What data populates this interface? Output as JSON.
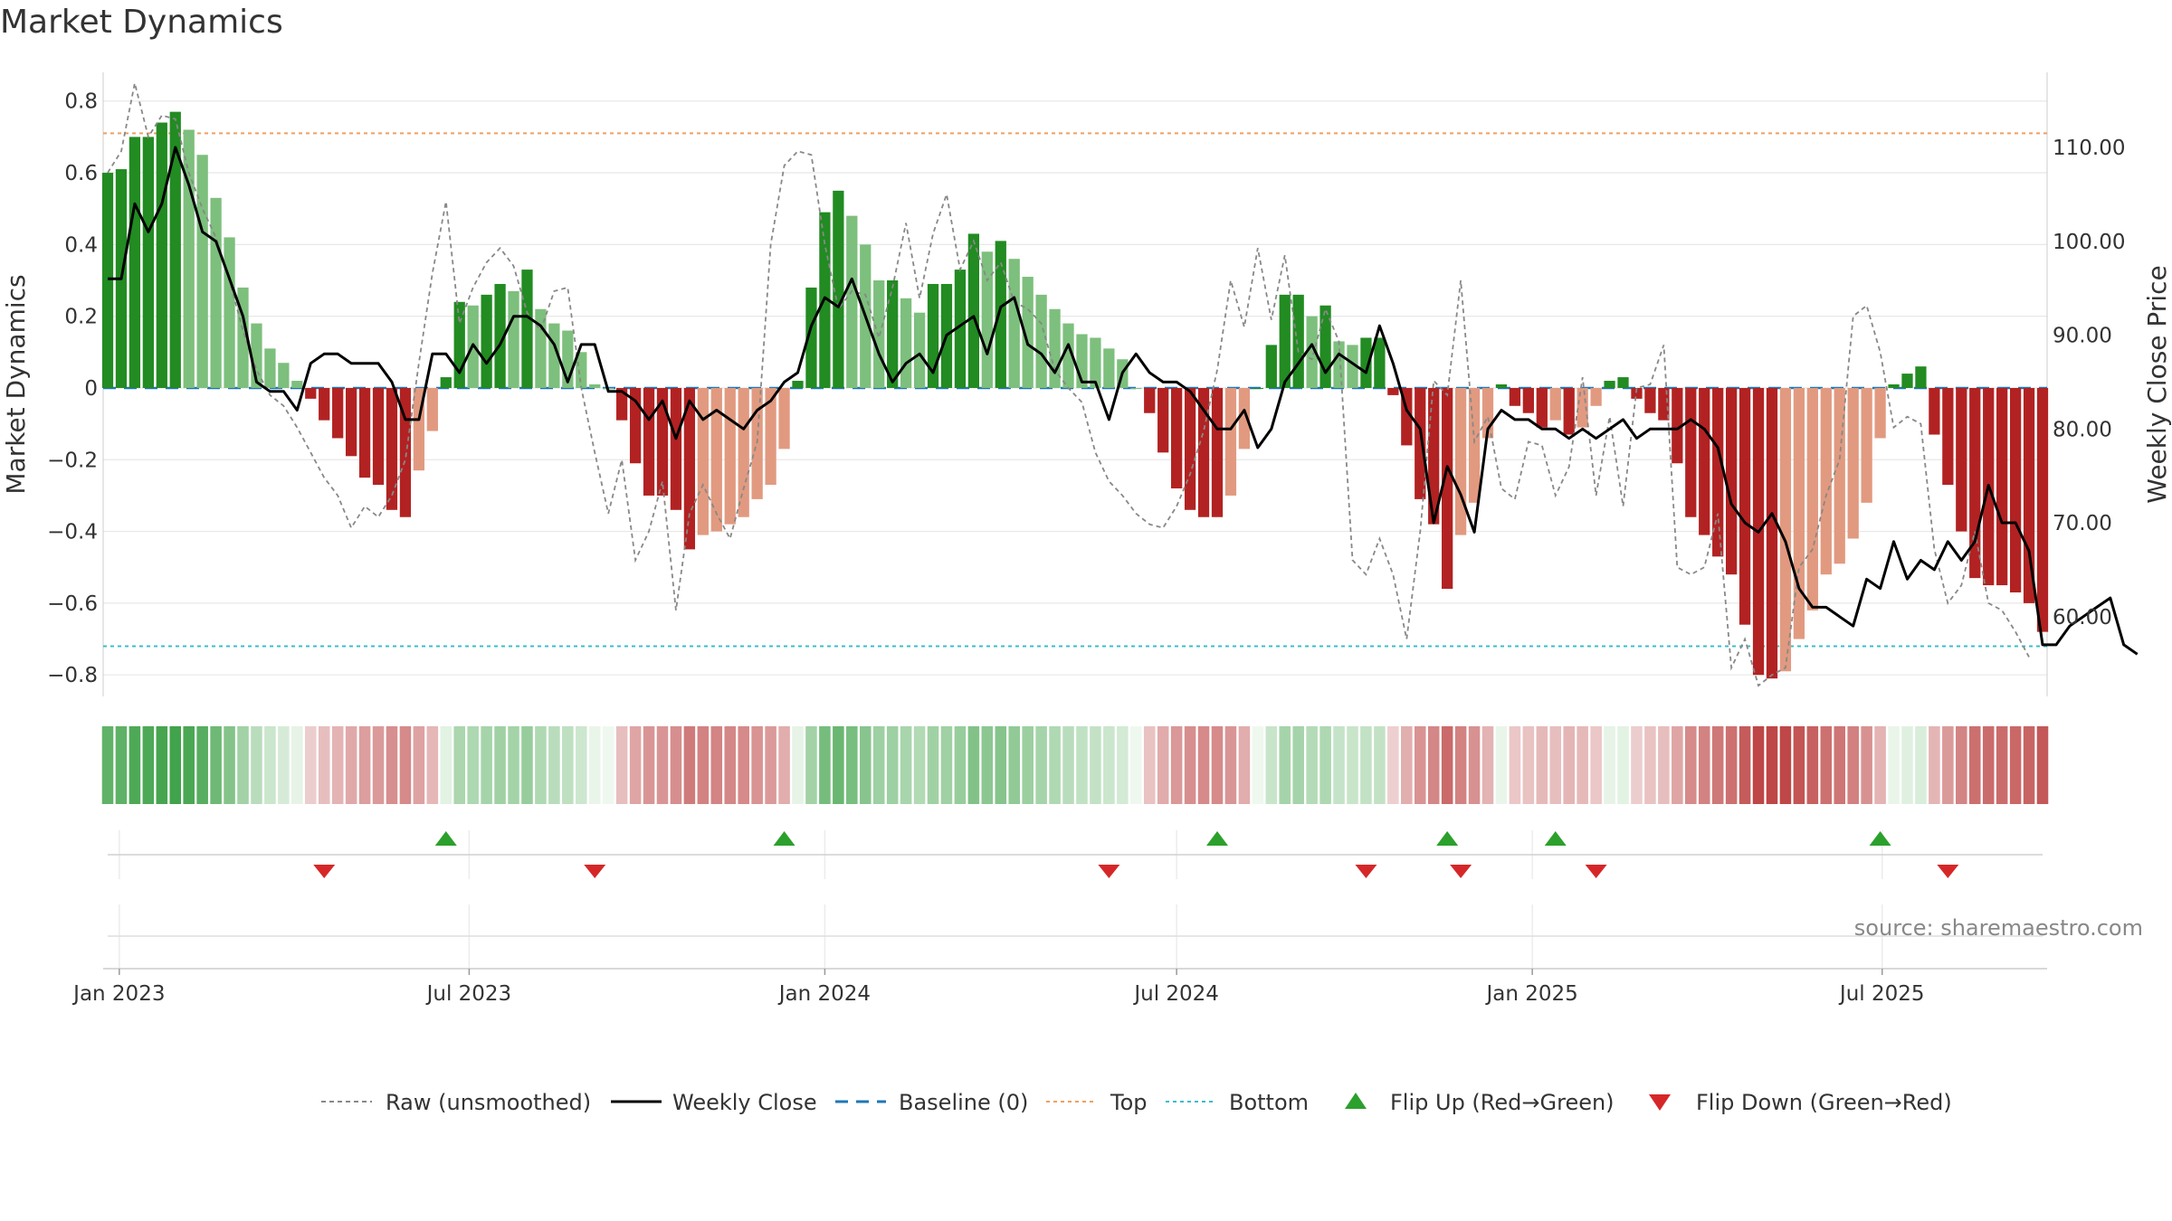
{
  "chart_data": {
    "type": "bar",
    "title": "Market Dynamics",
    "ylabel_left": "Market Dynamics",
    "ylabel_right": "Weekly Close Price",
    "ylim_left": [
      -0.86,
      0.88
    ],
    "ylim_right": [
      51.5,
      118
    ],
    "yticks_left": [
      {
        "v": 0.8,
        "label": "0.8"
      },
      {
        "v": 0.6,
        "label": "0.6"
      },
      {
        "v": 0.4,
        "label": "0.4"
      },
      {
        "v": 0.2,
        "label": "0.2"
      },
      {
        "v": 0,
        "label": "0"
      },
      {
        "v": -0.2,
        "label": "−0.2"
      },
      {
        "v": -0.4,
        "label": "−0.4"
      },
      {
        "v": -0.6,
        "label": "−0.6"
      },
      {
        "v": -0.8,
        "label": "−0.8"
      }
    ],
    "yticks_right": [
      {
        "v": 110,
        "label": "110.00"
      },
      {
        "v": 100,
        "label": "100.00"
      },
      {
        "v": 90,
        "label": "90.00"
      },
      {
        "v": 80,
        "label": "80.00"
      },
      {
        "v": 70,
        "label": "70.00"
      },
      {
        "v": 60,
        "label": "60.00"
      }
    ],
    "x_start": "2022-12-26",
    "x_ticks": [
      {
        "date": "2023-01-01",
        "label": "Jan 2023"
      },
      {
        "date": "2023-07-01",
        "label": "Jul 2023"
      },
      {
        "date": "2024-01-01",
        "label": "Jan 2024"
      },
      {
        "date": "2024-07-01",
        "label": "Jul 2024"
      },
      {
        "date": "2025-01-01",
        "label": "Jan 2025"
      },
      {
        "date": "2025-07-01",
        "label": "Jul 2025"
      }
    ],
    "top_level": 0.71,
    "bottom_level": -0.72,
    "baseline": 0,
    "dynamics": [
      0.6,
      0.61,
      0.7,
      0.7,
      0.74,
      0.77,
      0.72,
      0.65,
      0.53,
      0.42,
      0.28,
      0.18,
      0.11,
      0.07,
      0.02,
      -0.03,
      -0.09,
      -0.14,
      -0.19,
      -0.25,
      -0.27,
      -0.34,
      -0.36,
      -0.23,
      -0.12,
      0.03,
      0.24,
      0.23,
      0.26,
      0.29,
      0.27,
      0.33,
      0.22,
      0.18,
      0.16,
      0.1,
      0.01,
      0.0,
      -0.09,
      -0.21,
      -0.3,
      -0.3,
      -0.34,
      -0.45,
      -0.41,
      -0.4,
      -0.38,
      -0.36,
      -0.31,
      -0.27,
      -0.17,
      0.02,
      0.28,
      0.49,
      0.55,
      0.48,
      0.4,
      0.3,
      0.3,
      0.25,
      0.21,
      0.29,
      0.29,
      0.33,
      0.43,
      0.38,
      0.41,
      0.36,
      0.31,
      0.26,
      0.22,
      0.18,
      0.15,
      0.14,
      0.11,
      0.08,
      0.0,
      -0.07,
      -0.18,
      -0.28,
      -0.34,
      -0.36,
      -0.36,
      -0.3,
      -0.17,
      0.0,
      0.12,
      0.26,
      0.26,
      0.2,
      0.23,
      0.13,
      0.12,
      0.14,
      0.14,
      -0.02,
      -0.16,
      -0.31,
      -0.38,
      -0.56,
      -0.41,
      -0.32,
      -0.14,
      0.01,
      -0.05,
      -0.07,
      -0.11,
      -0.09,
      -0.13,
      -0.11,
      -0.05,
      0.02,
      0.03,
      -0.03,
      -0.07,
      -0.09,
      -0.21,
      -0.36,
      -0.41,
      -0.47,
      -0.52,
      -0.66,
      -0.8,
      -0.81,
      -0.79,
      -0.7,
      -0.62,
      -0.52,
      -0.49,
      -0.42,
      -0.32,
      -0.14,
      0.01,
      0.04,
      0.06,
      -0.13,
      -0.27,
      -0.4,
      -0.53,
      -0.55,
      -0.55,
      -0.57,
      -0.6,
      -0.68
    ],
    "raw": [
      0.6,
      0.66,
      0.85,
      0.7,
      0.76,
      0.75,
      0.6,
      0.5,
      0.42,
      0.3,
      0.16,
      0.05,
      -0.02,
      -0.05,
      -0.11,
      -0.18,
      -0.25,
      -0.3,
      -0.39,
      -0.33,
      -0.36,
      -0.3,
      -0.2,
      0.07,
      0.32,
      0.52,
      0.18,
      0.28,
      0.35,
      0.39,
      0.34,
      0.21,
      0.16,
      0.27,
      0.28,
      0.0,
      -0.18,
      -0.35,
      -0.2,
      -0.48,
      -0.4,
      -0.26,
      -0.62,
      -0.35,
      -0.27,
      -0.35,
      -0.42,
      -0.28,
      -0.15,
      0.4,
      0.62,
      0.66,
      0.65,
      0.4,
      0.22,
      0.27,
      0.26,
      0.14,
      0.28,
      0.46,
      0.25,
      0.43,
      0.54,
      0.33,
      0.41,
      0.3,
      0.35,
      0.24,
      0.22,
      0.18,
      0.05,
      0.0,
      -0.04,
      -0.18,
      -0.26,
      -0.3,
      -0.35,
      -0.38,
      -0.39,
      -0.33,
      -0.24,
      -0.12,
      0.05,
      0.3,
      0.17,
      0.39,
      0.19,
      0.37,
      0.1,
      0.08,
      0.22,
      0.13,
      -0.48,
      -0.52,
      -0.42,
      -0.52,
      -0.7,
      -0.4,
      0.02,
      -0.02,
      0.3,
      -0.15,
      -0.08,
      -0.28,
      -0.31,
      -0.15,
      -0.16,
      -0.3,
      -0.22,
      0.03,
      -0.3,
      -0.08,
      -0.33,
      0.0,
      0.01,
      0.12,
      -0.5,
      -0.52,
      -0.5,
      -0.35,
      -0.78,
      -0.7,
      -0.83,
      -0.8,
      -0.78,
      -0.5,
      -0.45,
      -0.3,
      -0.2,
      0.2,
      0.23,
      0.1,
      -0.11,
      -0.08,
      -0.1,
      -0.45,
      -0.6,
      -0.55,
      -0.4,
      -0.6,
      -0.62,
      -0.68,
      -0.75
    ],
    "weekly_close": [
      96,
      96,
      104,
      101,
      104,
      110,
      106,
      101,
      100,
      96,
      92,
      85,
      84,
      84,
      82,
      87,
      88,
      88,
      87,
      87,
      87,
      85,
      81,
      81,
      88,
      88,
      86,
      89,
      87,
      89,
      92,
      92,
      91,
      89,
      85,
      89,
      89,
      84,
      84,
      83,
      81,
      83,
      79,
      83,
      81,
      82,
      81,
      80,
      82,
      83,
      85,
      86,
      91,
      94,
      93,
      96,
      92,
      88,
      85,
      87,
      88,
      86,
      90,
      91,
      92,
      88,
      93,
      94,
      89,
      88,
      86,
      89,
      85,
      85,
      81,
      86,
      88,
      86,
      85,
      85,
      84,
      82,
      80,
      80,
      82,
      78,
      80,
      85,
      87,
      89,
      86,
      88,
      87,
      86,
      91,
      87,
      82,
      80,
      70,
      76,
      73,
      69,
      80,
      82,
      81,
      81,
      80,
      80,
      79,
      80,
      79,
      80,
      81,
      79,
      80,
      80,
      80,
      81,
      80,
      78,
      72,
      70,
      69,
      71,
      68,
      63,
      61,
      61,
      60,
      59,
      64,
      63,
      68,
      64,
      66,
      65,
      68,
      66,
      68,
      74,
      70,
      70,
      67,
      57,
      57,
      59,
      60,
      61,
      62,
      57,
      56
    ],
    "flip_up_dates": [
      "2023-06-19",
      "2023-12-11",
      "2024-07-22",
      "2024-11-18",
      "2025-01-13",
      "2025-06-30"
    ],
    "flip_down_dates": [
      "2023-04-17",
      "2023-09-04",
      "2024-05-27",
      "2024-10-07",
      "2024-11-25",
      "2025-02-03",
      "2025-08-04"
    ]
  },
  "legend": {
    "raw": "Raw (unsmoothed)",
    "close": "Weekly Close",
    "baseline": "Baseline (0)",
    "top": "Top",
    "bottom": "Bottom",
    "flip_up": "Flip Up (Red→Green)",
    "flip_down": "Flip Down (Green→Red)"
  },
  "source": "source: sharemaestro.com",
  "colors": {
    "green_strong": "#228B22",
    "green_light": "#7dbf7d",
    "red_strong": "#b22222",
    "red_light": "#e19a80",
    "top_line": "#f0a060",
    "bottom_line": "#3cbccc",
    "baseline": "#1f77b4",
    "raw_line": "#888888",
    "close_line": "#000000",
    "flip_up": "#2ca02c",
    "flip_down": "#d62728"
  }
}
